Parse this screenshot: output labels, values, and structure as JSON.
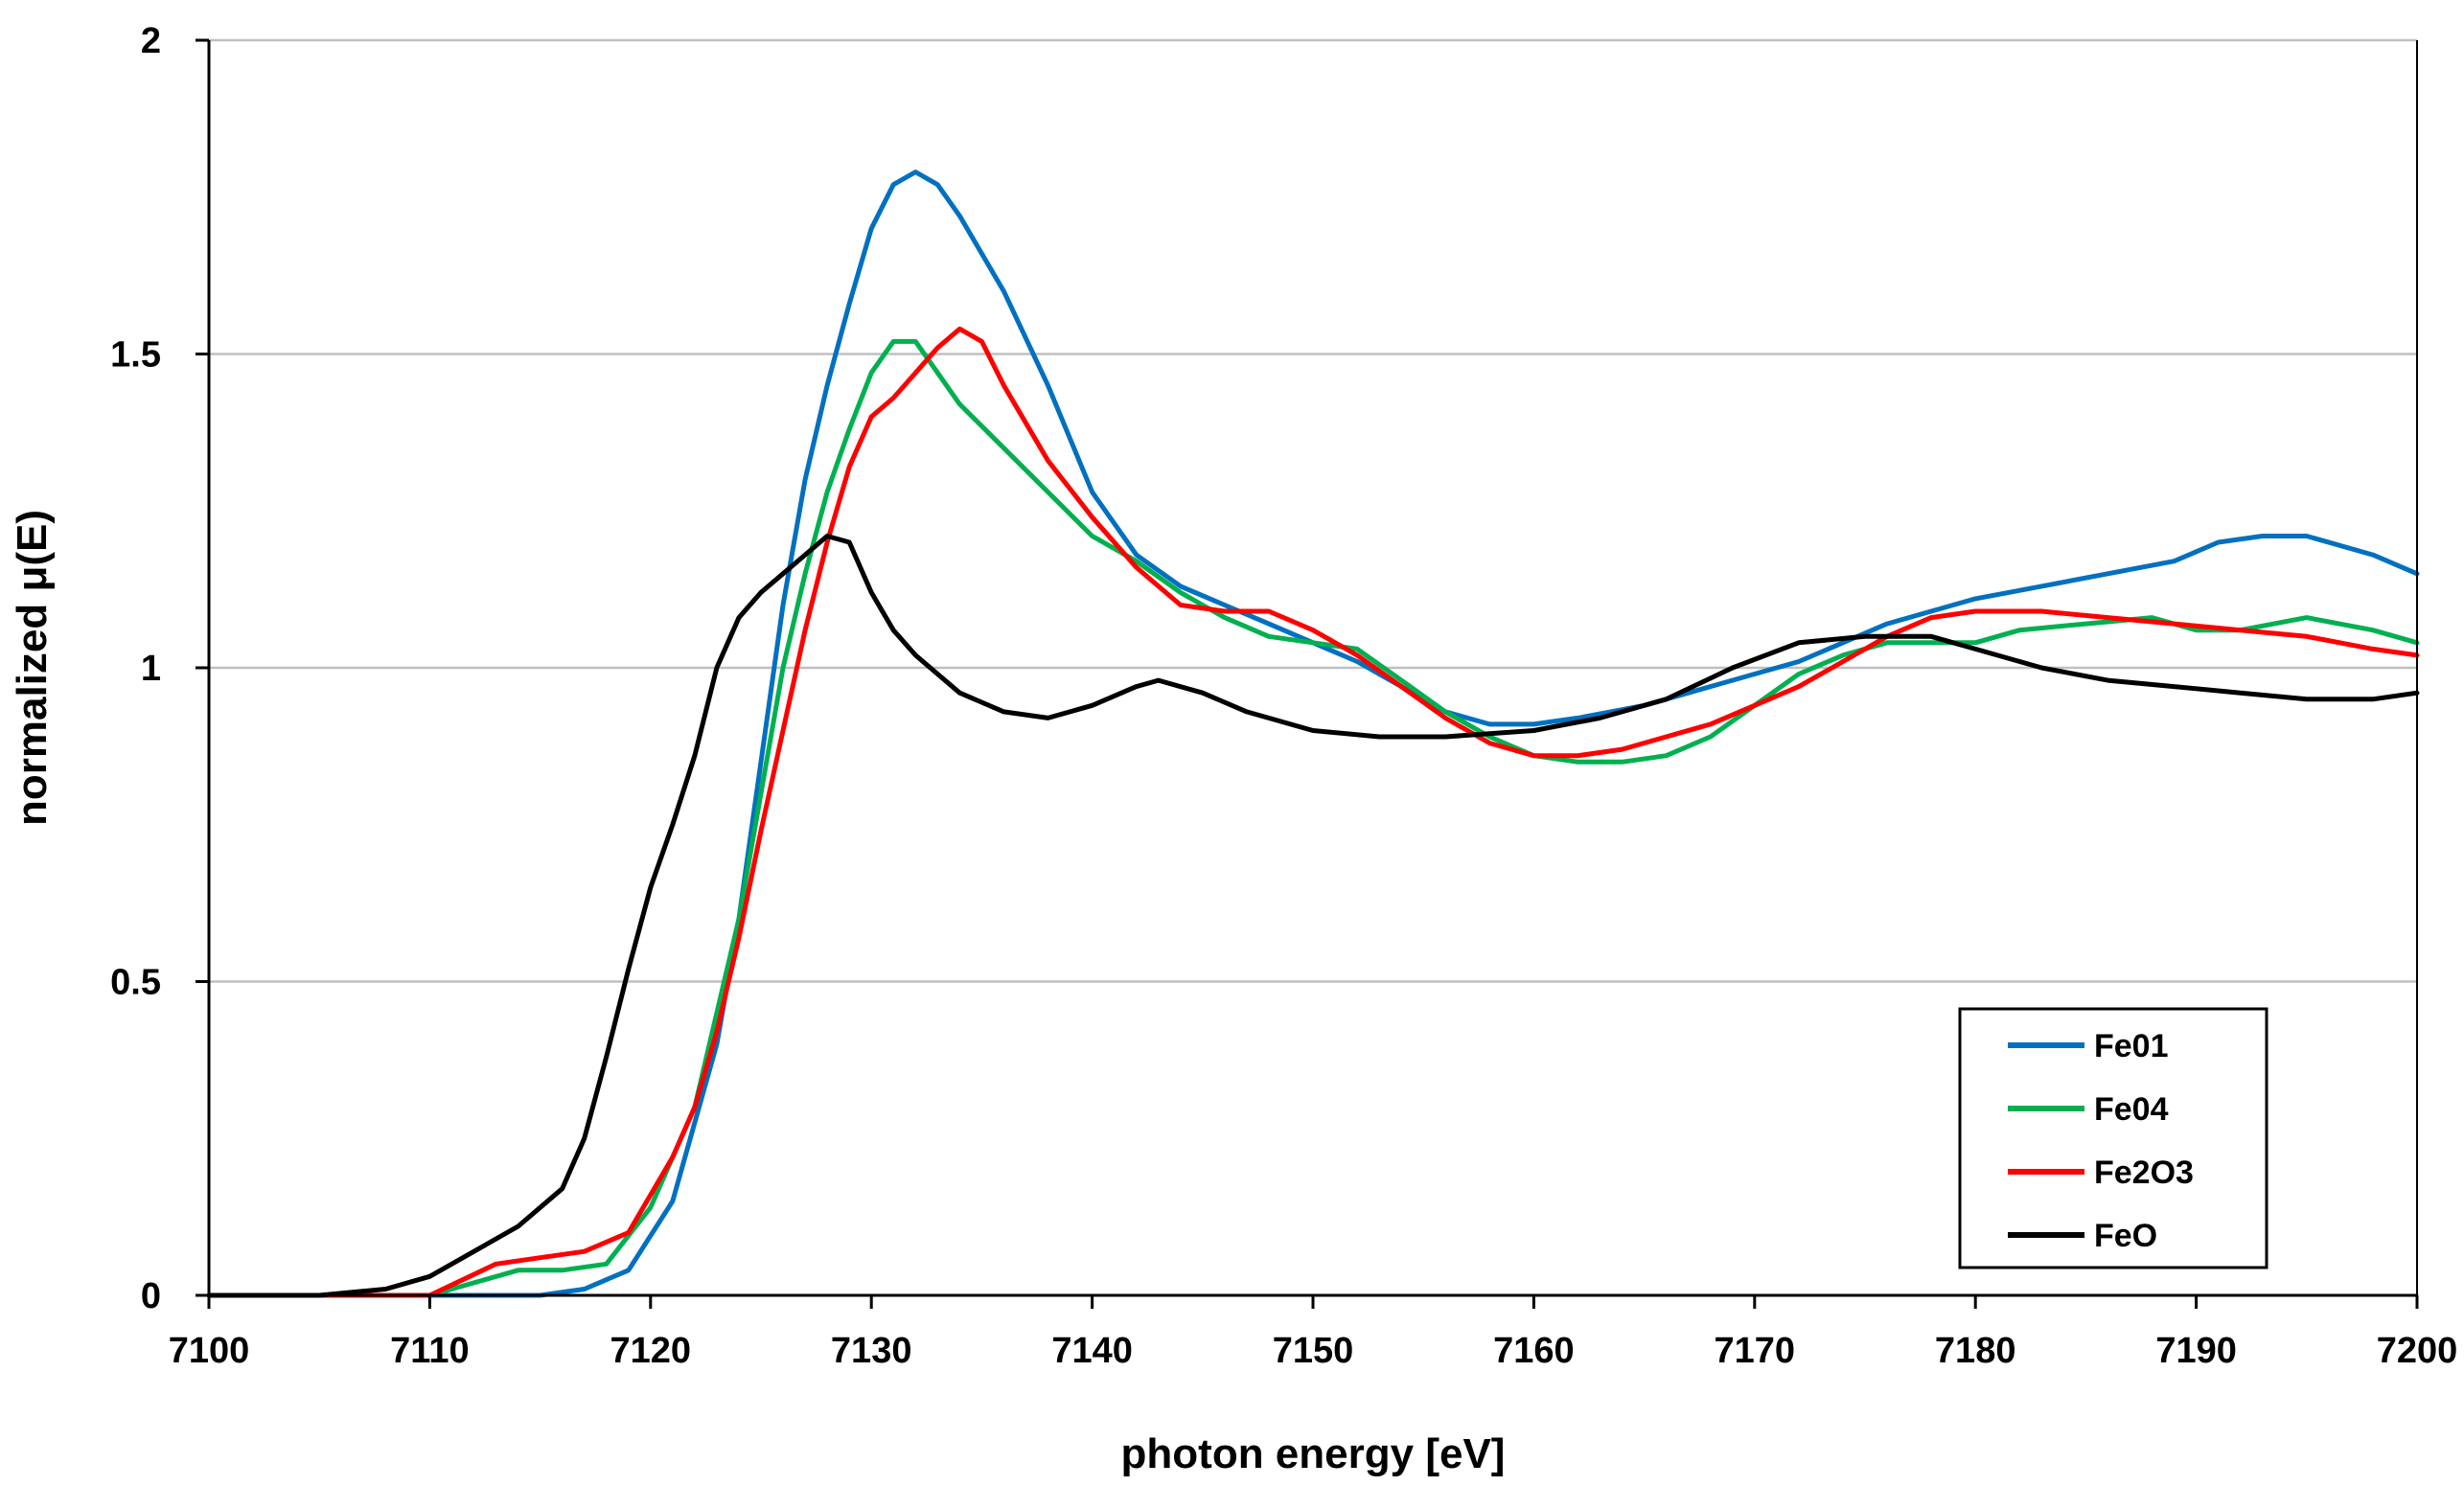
{
  "chart_data": {
    "type": "line",
    "title": "",
    "xlabel": "photon energy [eV]",
    "ylabel": "normalized μ(E)",
    "xlim": [
      7100,
      7200
    ],
    "ylim": [
      0,
      2
    ],
    "xticks": [
      "7100",
      "7110",
      "7120",
      "7130",
      "7140",
      "7150",
      "7160",
      "7170",
      "7180",
      "7190",
      "7200"
    ],
    "yticks": [
      "0",
      "0.5",
      "1",
      "1.5",
      "2"
    ],
    "grid": "horizontal",
    "legend_position": "bottom-right",
    "series": [
      {
        "name": "Fe01",
        "color": "#0070C0",
        "x": [
          7100,
          7105,
          7110,
          7115,
          7117,
          7119,
          7121,
          7123,
          7124,
          7125,
          7126,
          7127,
          7128,
          7129,
          7130,
          7131,
          7132,
          7133,
          7134,
          7136,
          7138,
          7140,
          7142,
          7144,
          7146,
          7148,
          7150,
          7152,
          7154,
          7156,
          7158,
          7160,
          7162,
          7165,
          7168,
          7170,
          7172,
          7174,
          7176,
          7178,
          7180,
          7183,
          7186,
          7189,
          7191,
          7193,
          7195,
          7198,
          7200
        ],
        "y": [
          0,
          0,
          0,
          0,
          0.01,
          0.04,
          0.15,
          0.4,
          0.6,
          0.85,
          1.1,
          1.3,
          1.45,
          1.58,
          1.7,
          1.77,
          1.79,
          1.77,
          1.72,
          1.6,
          1.45,
          1.28,
          1.18,
          1.13,
          1.1,
          1.07,
          1.04,
          1.01,
          0.97,
          0.93,
          0.91,
          0.91,
          0.92,
          0.94,
          0.97,
          0.99,
          1.01,
          1.04,
          1.07,
          1.09,
          1.11,
          1.13,
          1.15,
          1.17,
          1.2,
          1.21,
          1.21,
          1.18,
          1.15
        ]
      },
      {
        "name": "Fe04",
        "color": "#00B050",
        "x": [
          7100,
          7105,
          7110,
          7112,
          7114,
          7116,
          7118,
          7120,
          7122,
          7123,
          7124,
          7125,
          7126,
          7127,
          7128,
          7129,
          7130,
          7131,
          7132,
          7133,
          7134,
          7136,
          7138,
          7140,
          7142,
          7144,
          7146,
          7148,
          7150,
          7152,
          7154,
          7156,
          7158,
          7160,
          7162,
          7164,
          7166,
          7168,
          7170,
          7172,
          7174,
          7176,
          7178,
          7180,
          7182,
          7185,
          7188,
          7190,
          7192,
          7195,
          7198,
          7200
        ],
        "y": [
          0,
          0,
          0,
          0.02,
          0.04,
          0.04,
          0.05,
          0.14,
          0.3,
          0.45,
          0.6,
          0.8,
          1.0,
          1.15,
          1.28,
          1.38,
          1.47,
          1.52,
          1.52,
          1.47,
          1.42,
          1.35,
          1.28,
          1.21,
          1.17,
          1.12,
          1.08,
          1.05,
          1.04,
          1.03,
          0.98,
          0.93,
          0.89,
          0.86,
          0.85,
          0.85,
          0.86,
          0.89,
          0.94,
          0.99,
          1.02,
          1.04,
          1.04,
          1.04,
          1.06,
          1.07,
          1.08,
          1.06,
          1.06,
          1.08,
          1.06,
          1.04
        ]
      },
      {
        "name": "Fe2O3",
        "color": "#FF0000",
        "x": [
          7100,
          7105,
          7110,
          7113,
          7115,
          7117,
          7119,
          7121,
          7122,
          7123,
          7124,
          7125,
          7126,
          7127,
          7128,
          7129,
          7130,
          7131,
          7132,
          7133,
          7134,
          7135,
          7136,
          7138,
          7140,
          7142,
          7144,
          7146,
          7148,
          7150,
          7152,
          7154,
          7156,
          7158,
          7160,
          7162,
          7164,
          7166,
          7168,
          7170,
          7172,
          7174,
          7176,
          7178,
          7180,
          7183,
          7186,
          7189,
          7192,
          7195,
          7198,
          7200
        ],
        "y": [
          0,
          0,
          0,
          0.05,
          0.06,
          0.07,
          0.1,
          0.22,
          0.3,
          0.42,
          0.57,
          0.74,
          0.9,
          1.06,
          1.2,
          1.32,
          1.4,
          1.43,
          1.47,
          1.51,
          1.54,
          1.52,
          1.45,
          1.33,
          1.24,
          1.16,
          1.1,
          1.09,
          1.09,
          1.06,
          1.02,
          0.97,
          0.92,
          0.88,
          0.86,
          0.86,
          0.87,
          0.89,
          0.91,
          0.94,
          0.97,
          1.01,
          1.05,
          1.08,
          1.09,
          1.09,
          1.08,
          1.07,
          1.06,
          1.05,
          1.03,
          1.02
        ]
      },
      {
        "name": "FeO",
        "color": "#000000",
        "x": [
          7100,
          7105,
          7108,
          7110,
          7112,
          7114,
          7116,
          7117,
          7118,
          7119,
          7120,
          7121,
          7122,
          7123,
          7124,
          7125,
          7126,
          7127,
          7128,
          7129,
          7130,
          7131,
          7132,
          7134,
          7136,
          7138,
          7140,
          7142,
          7143,
          7145,
          7147,
          7150,
          7153,
          7156,
          7160,
          7163,
          7166,
          7169,
          7172,
          7175,
          7178,
          7180,
          7183,
          7186,
          7189,
          7192,
          7195,
          7198,
          7200
        ],
        "y": [
          0,
          0,
          0.01,
          0.03,
          0.07,
          0.11,
          0.17,
          0.25,
          0.38,
          0.52,
          0.65,
          0.75,
          0.86,
          1.0,
          1.08,
          1.12,
          1.15,
          1.18,
          1.21,
          1.2,
          1.12,
          1.06,
          1.02,
          0.96,
          0.93,
          0.92,
          0.94,
          0.97,
          0.98,
          0.96,
          0.93,
          0.9,
          0.89,
          0.89,
          0.9,
          0.92,
          0.95,
          1.0,
          1.04,
          1.05,
          1.05,
          1.03,
          1.0,
          0.98,
          0.97,
          0.96,
          0.95,
          0.95,
          0.96
        ]
      }
    ]
  }
}
